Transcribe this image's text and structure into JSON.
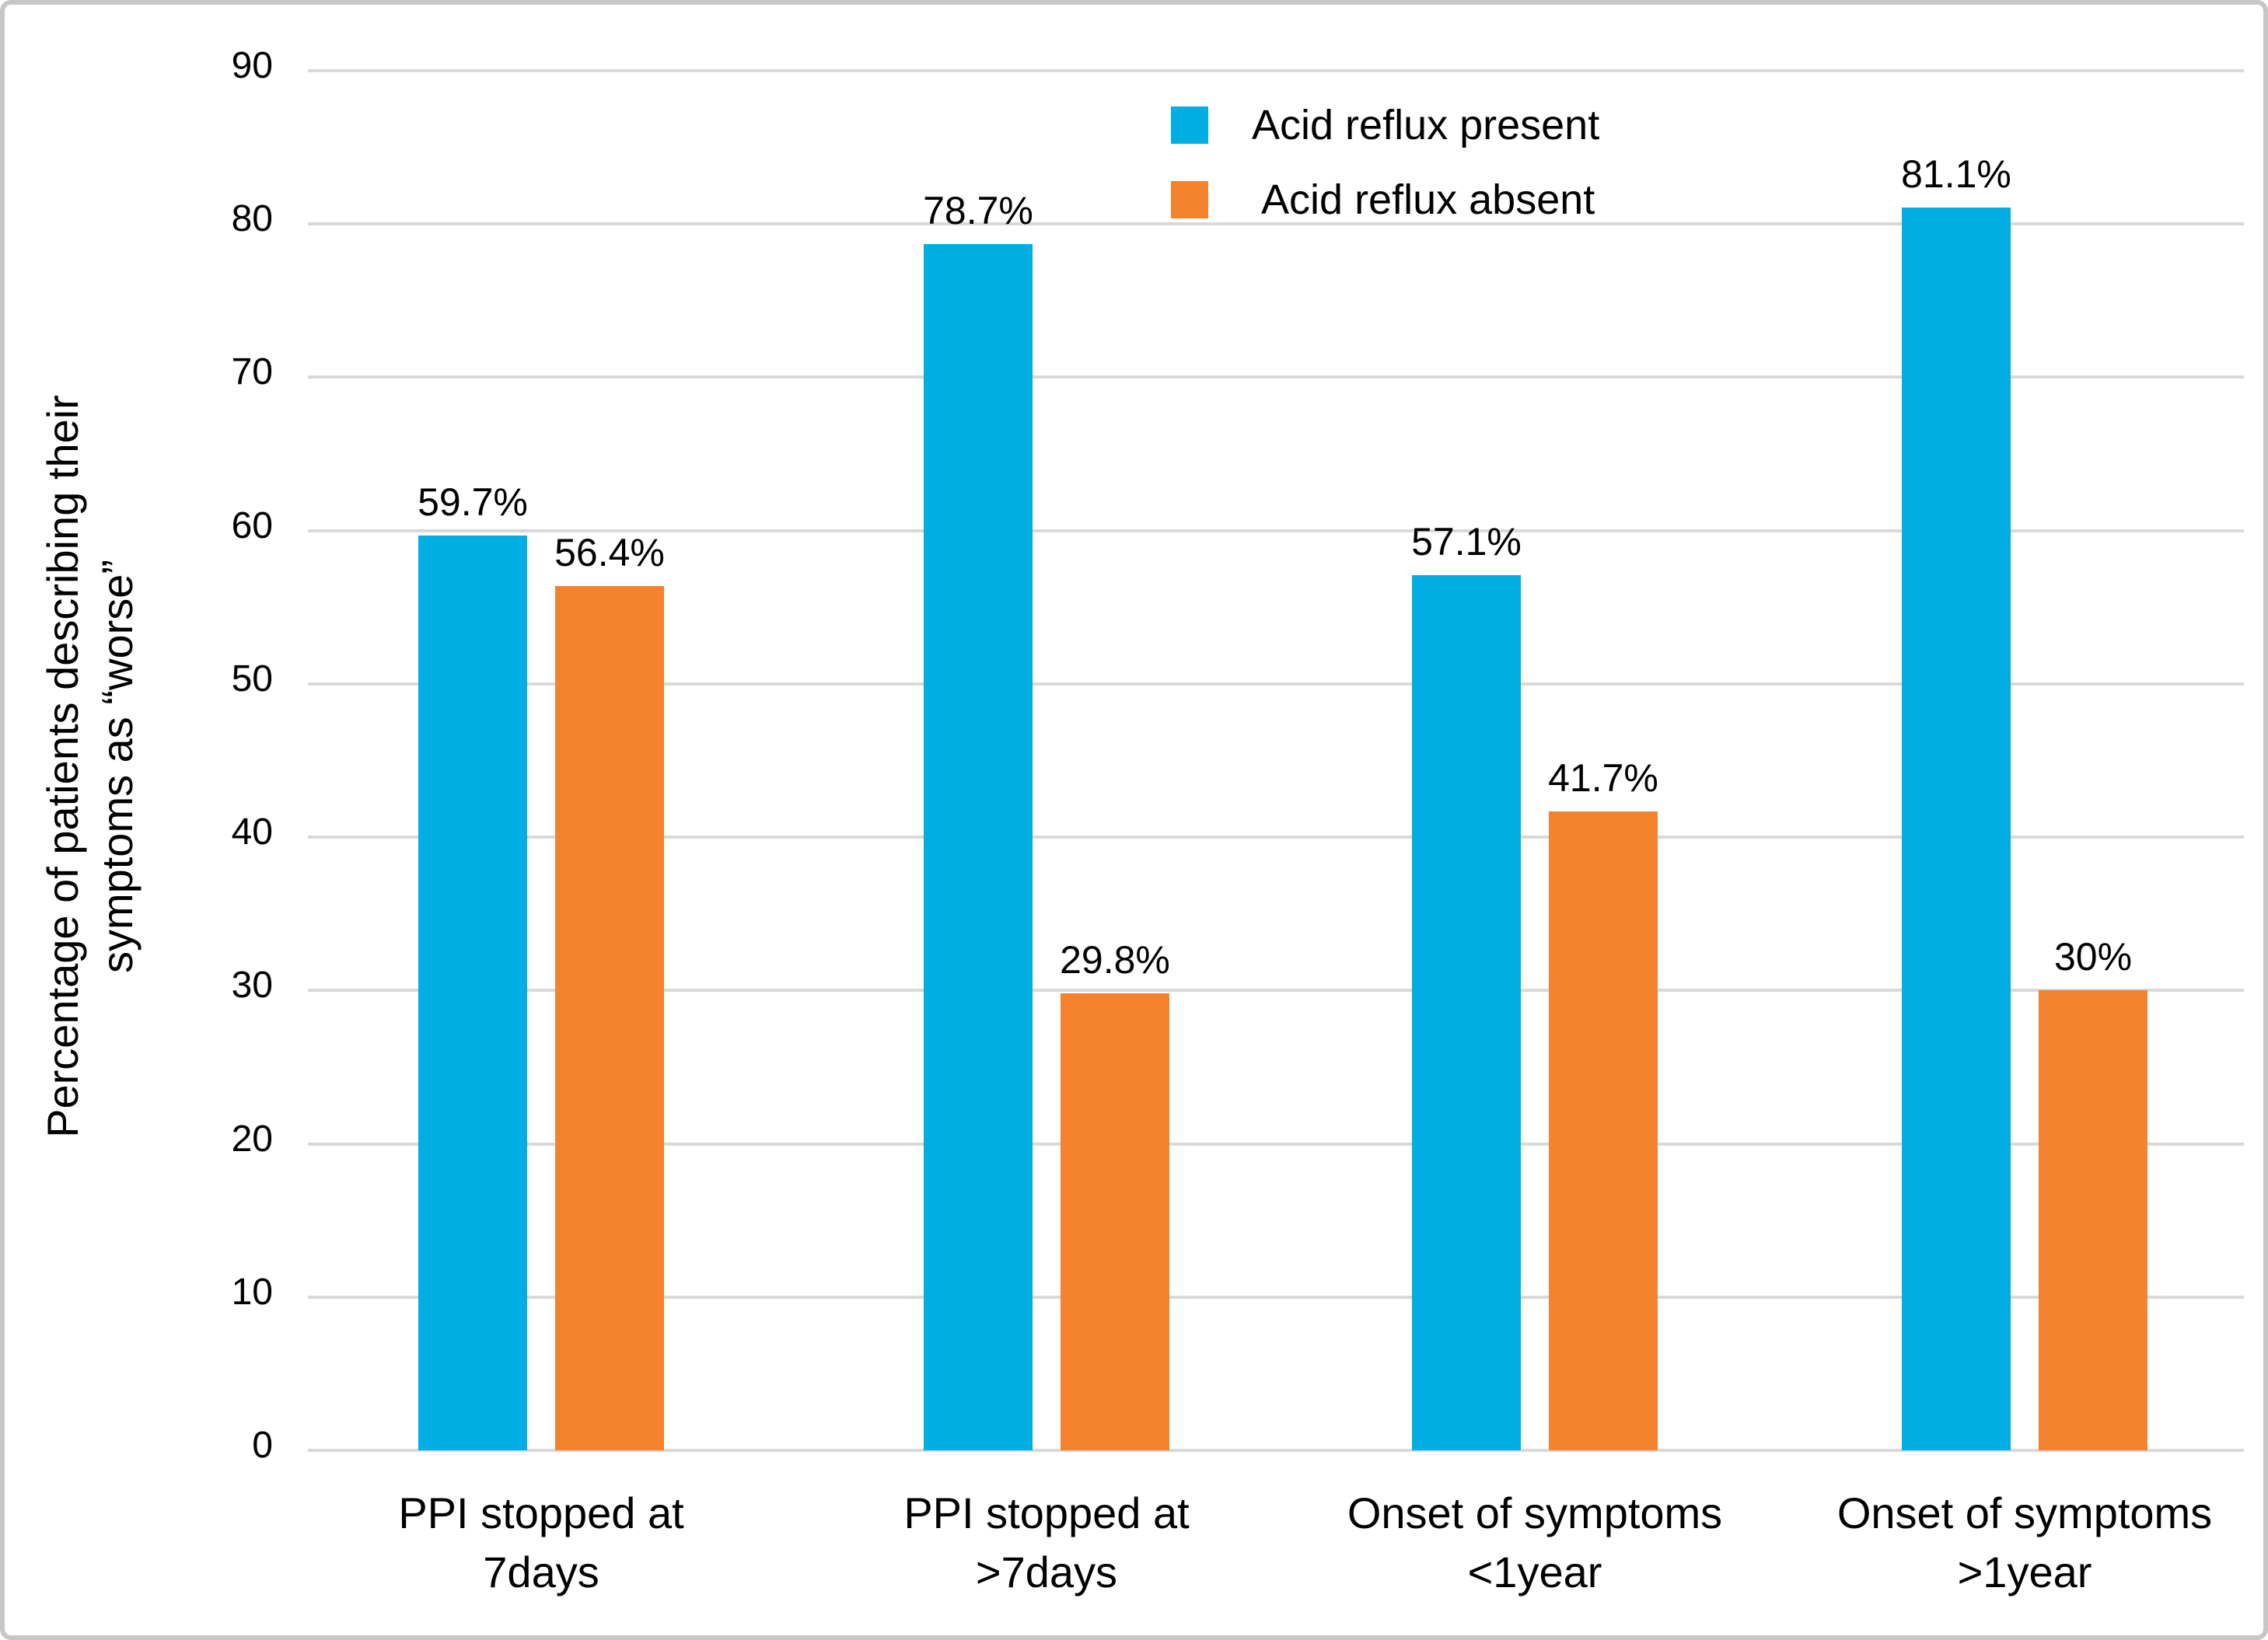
{
  "chart_data": {
    "type": "bar",
    "title": "",
    "xlabel": "",
    "ylabel": "Percentage of patients describing their symptoms as “worse”",
    "ylabel_lines": [
      "Percentage of patients describing their",
      "symptoms as “worse”"
    ],
    "ylim": [
      0,
      90
    ],
    "yticks": [
      0,
      10,
      20,
      30,
      40,
      50,
      60,
      70,
      80,
      90
    ],
    "grid": true,
    "legend_position": "top-center",
    "categories": [
      "PPI stopped at\n7days",
      "PPI stopped at\n>7days",
      "Onset of symptoms\n<1year",
      "Onset of symptoms\n>1year"
    ],
    "series": [
      {
        "name": "Acid reflux present",
        "color": "#00aee4",
        "values": [
          59.7,
          78.7,
          57.1,
          81.1
        ],
        "value_labels": [
          "59.7%",
          "78.7%",
          "57.1%",
          "81.1%"
        ]
      },
      {
        "name": " Acid reflux absent",
        "color": "#f5822f",
        "values": [
          56.4,
          29.8,
          41.7,
          30
        ],
        "value_labels": [
          "56.4%",
          "29.8%",
          "41.7%",
          "30%"
        ]
      }
    ],
    "colors": {
      "grid": "#d9d9d9",
      "text": "#000000",
      "background": "#ffffff",
      "border": "#c6c6c6"
    }
  }
}
